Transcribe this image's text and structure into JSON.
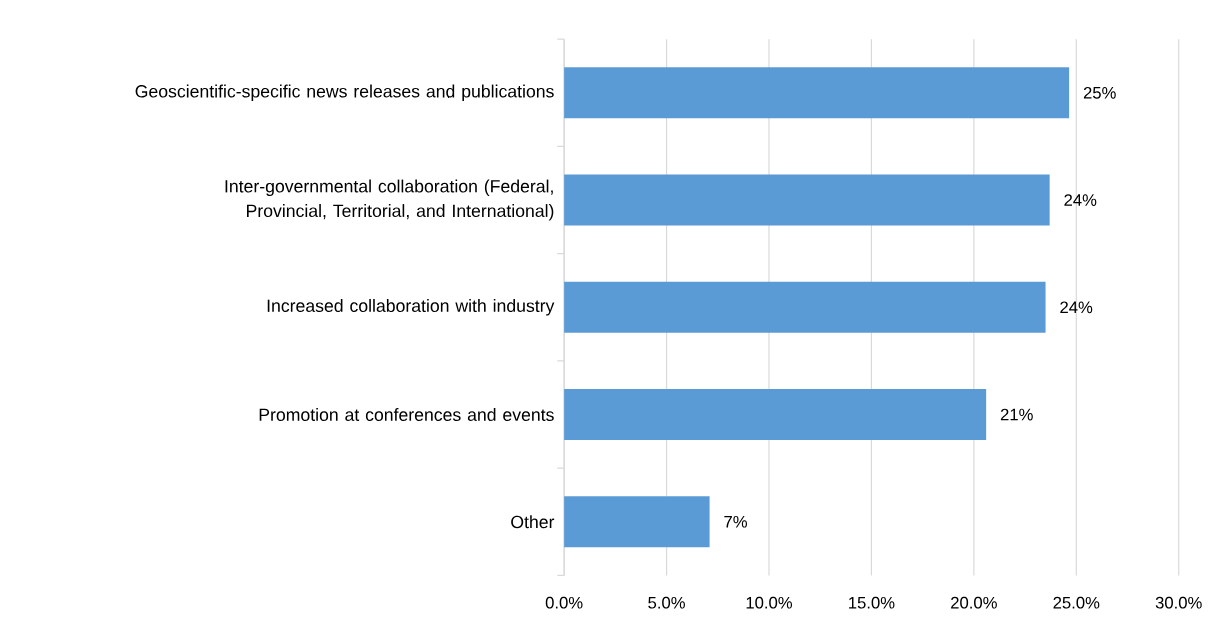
{
  "chart_data": {
    "type": "bar",
    "orientation": "horizontal",
    "categories": [
      "Geoscientific-specific news releases and publications",
      "Inter-governmental collaboration (Federal, Provincial, Territorial, and International)",
      "Increased collaboration with industry",
      "Promotion at conferences and events",
      "Other"
    ],
    "values": [
      24.65,
      23.7,
      23.5,
      20.6,
      7.1
    ],
    "value_labels": [
      "25%",
      "24%",
      "24%",
      "21%",
      "7%"
    ],
    "color": "#5b9bd5",
    "xlim": [
      0,
      30
    ],
    "xticks": [
      {
        "value": 0,
        "label": "0.0%"
      },
      {
        "value": 5,
        "label": "5.0%"
      },
      {
        "value": 10,
        "label": "10.0%"
      },
      {
        "value": 15,
        "label": "15.0%"
      },
      {
        "value": 20,
        "label": "20.0%"
      },
      {
        "value": 25,
        "label": "25.0%"
      },
      {
        "value": 30,
        "label": "30.0%"
      }
    ],
    "grid": "x"
  }
}
